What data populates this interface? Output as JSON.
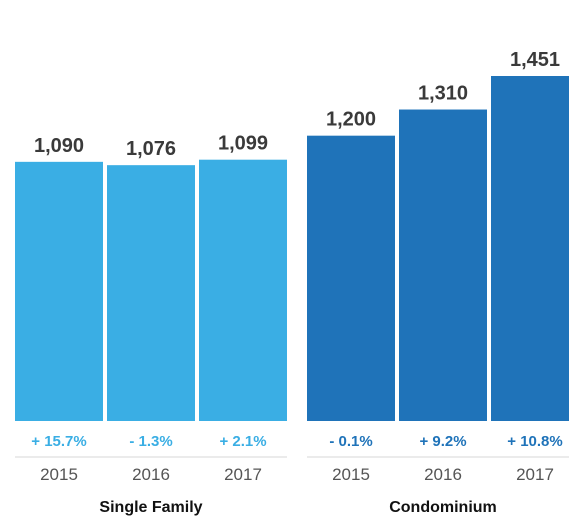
{
  "chart_data": {
    "type": "bar",
    "title": "",
    "xlabel": "",
    "ylabel": "",
    "ylim": [
      0,
      1451
    ],
    "grid": false,
    "legend": "none",
    "groups": [
      {
        "name": "Single Family",
        "color": "#3aaee4",
        "bars": [
          {
            "year": "2015",
            "value": 1090,
            "value_label": "1,090",
            "change": "+ 15.7%"
          },
          {
            "year": "2016",
            "value": 1076,
            "value_label": "1,076",
            "change": "- 1.3%"
          },
          {
            "year": "2017",
            "value": 1099,
            "value_label": "1,099",
            "change": "+ 2.1%"
          }
        ]
      },
      {
        "name": "Condominium",
        "color": "#1f73b9",
        "bars": [
          {
            "year": "2015",
            "value": 1200,
            "value_label": "1,200",
            "change": "- 0.1%"
          },
          {
            "year": "2016",
            "value": 1310,
            "value_label": "1,310",
            "change": "+ 9.2%"
          },
          {
            "year": "2017",
            "value": 1451,
            "value_label": "1,451",
            "change": "+ 10.8%"
          }
        ]
      }
    ]
  }
}
